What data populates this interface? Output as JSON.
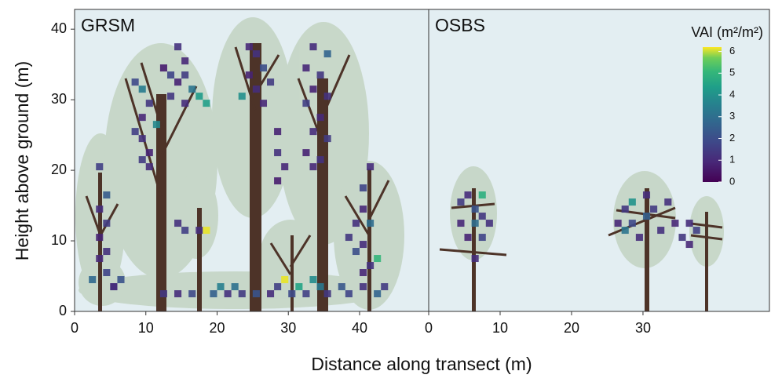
{
  "chart_data": [
    {
      "type": "heatmap",
      "title": "GRSM",
      "xlabel": "Distance along transect (m)",
      "ylabel": "Height above ground (m)",
      "xlim": [
        0,
        49.7
      ],
      "ylim": [
        0,
        42.8
      ],
      "xticks": [
        0,
        10,
        20,
        30,
        40
      ],
      "yticks": [
        0,
        10,
        20,
        30,
        40
      ],
      "x": [
        3,
        4,
        3,
        4,
        3,
        4,
        3,
        4,
        2,
        5,
        8,
        9,
        10,
        9,
        8,
        9,
        10,
        9,
        11,
        10,
        14,
        15,
        13,
        14,
        16,
        17,
        13,
        15,
        18,
        12,
        15,
        14,
        15,
        17,
        18,
        24,
        25,
        26,
        24,
        27,
        25,
        23,
        26,
        28,
        28,
        29,
        28,
        33,
        35,
        32,
        34,
        33,
        35,
        32,
        34,
        33,
        35,
        32,
        34,
        33,
        41,
        40,
        40,
        39,
        41,
        38,
        40,
        39,
        42,
        41,
        40,
        12,
        14,
        16,
        19,
        20,
        21,
        22,
        23,
        25,
        27,
        28,
        29,
        30,
        31,
        32,
        33,
        34,
        35,
        37,
        38,
        40,
        42,
        43,
        5,
        6
      ],
      "y": [
        20,
        16,
        14,
        12,
        10,
        8,
        7,
        5,
        4,
        3,
        32,
        31,
        29,
        27,
        25,
        24,
        22,
        21,
        26,
        20,
        37,
        35,
        33,
        32,
        31,
        30,
        30,
        29,
        29,
        34,
        33,
        12,
        11,
        11,
        11,
        37,
        36,
        34,
        33,
        32,
        31,
        30,
        29,
        25,
        22,
        20,
        18,
        37,
        36,
        34,
        33,
        31,
        30,
        29,
        27,
        25,
        24,
        22,
        21,
        20,
        20,
        17,
        14,
        12,
        12,
        10,
        9,
        8,
        7,
        6,
        5,
        2,
        2,
        2,
        2,
        3,
        2,
        3,
        2,
        2,
        2,
        3,
        4,
        2,
        3,
        2,
        4,
        3,
        2,
        3,
        2,
        3,
        2,
        3,
        3,
        4
      ],
      "values": [
        1.2,
        1.8,
        0.8,
        1.1,
        0.6,
        0.9,
        0.7,
        1.3,
        2.1,
        0.8,
        1.4,
        2.6,
        1.0,
        0.7,
        1.2,
        0.9,
        0.6,
        1.1,
        2.9,
        0.8,
        0.9,
        0.7,
        1.3,
        0.6,
        2.4,
        3.4,
        1.0,
        0.8,
        3.5,
        0.5,
        1.1,
        0.9,
        1.2,
        0.8,
        6.0,
        0.7,
        0.9,
        1.5,
        0.6,
        1.1,
        0.8,
        3.1,
        0.7,
        0.6,
        0.9,
        0.7,
        0.5,
        0.8,
        2.0,
        0.7,
        1.0,
        0.6,
        0.9,
        1.2,
        0.7,
        0.8,
        1.1,
        0.6,
        0.9,
        0.7,
        0.8,
        1.3,
        0.7,
        0.9,
        2.2,
        1.0,
        0.8,
        1.5,
        4.1,
        0.9,
        0.7,
        1.0,
        0.8,
        1.4,
        1.9,
        2.7,
        0.9,
        2.3,
        1.1,
        1.6,
        0.8,
        1.2,
        6.0,
        1.4,
        3.6,
        1.2,
        3.0,
        2.5,
        1.0,
        1.7,
        1.3,
        0.9,
        2.0,
        1.1,
        0.8,
        1.6
      ]
    },
    {
      "type": "heatmap",
      "title": "OSBS",
      "xlim": [
        0,
        47.7
      ],
      "ylim": [
        0,
        42.8
      ],
      "xticks": [
        0,
        10,
        20,
        30
      ],
      "x": [
        4,
        5,
        6,
        7,
        4,
        6,
        8,
        5,
        7,
        6,
        7,
        27,
        28,
        30,
        26,
        28,
        30,
        32,
        27,
        29,
        31,
        34,
        33,
        36,
        35,
        36,
        37
      ],
      "y": [
        15,
        16,
        14,
        13,
        12,
        12,
        12,
        10,
        10,
        7,
        16,
        14,
        15,
        16,
        12,
        12,
        13,
        11,
        11,
        10,
        14,
        12,
        15,
        12,
        10,
        9,
        11
      ],
      "values": [
        1.1,
        0.8,
        1.6,
        1.0,
        0.7,
        2.2,
        0.9,
        0.6,
        1.3,
        0.8,
        3.9,
        1.0,
        3.2,
        0.8,
        0.7,
        1.4,
        1.9,
        0.9,
        2.4,
        0.8,
        1.1,
        0.7,
        0.9,
        0.8,
        1.0,
        0.7,
        1.2
      ],
      "colorbar": {
        "label": "VAI (m²/m²)",
        "lim": [
          0,
          6.2
        ],
        "ticks": [
          0,
          1,
          2,
          3,
          4,
          5,
          6
        ]
      }
    }
  ]
}
